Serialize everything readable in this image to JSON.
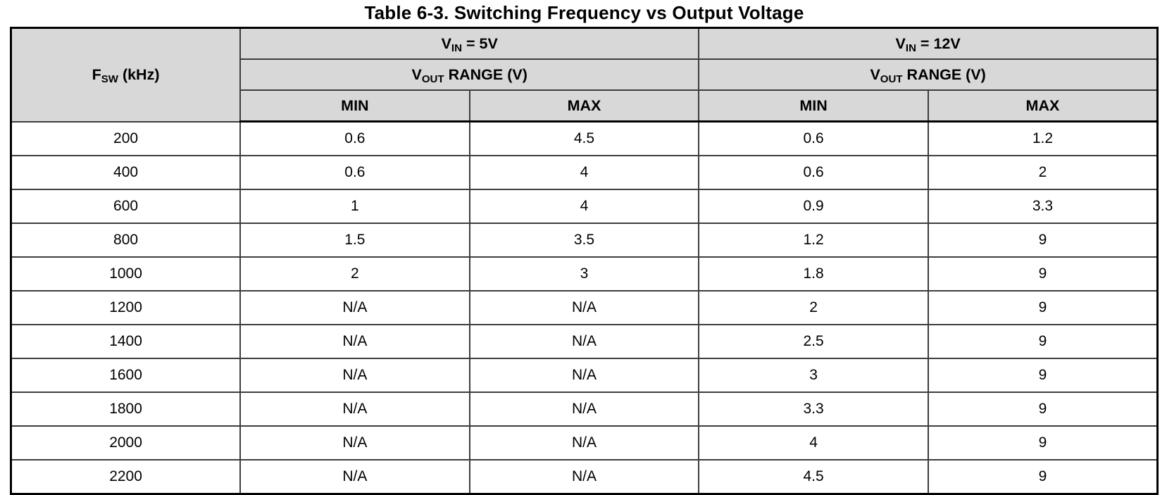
{
  "page": {
    "title": "Table 6-3. Switching Frequency vs Output Voltage"
  },
  "header": {
    "fsw": {
      "pre": "F",
      "sub": "SW",
      "post": " (kHz)"
    },
    "vin_5v": {
      "pre": "V",
      "sub": "IN",
      "post": " = 5V"
    },
    "vin_12v": {
      "pre": "V",
      "sub": "IN",
      "post": " = 12V"
    },
    "vout_range_5v": {
      "pre": "V",
      "sub": "OUT",
      "post": " RANGE (V)"
    },
    "vout_range_12v": {
      "pre": "V",
      "sub": "OUT",
      "post": " RANGE (V)"
    },
    "min_5v": "MIN",
    "max_5v": "MAX",
    "min_12v": "MIN",
    "max_12v": "MAX"
  },
  "columns": [
    "fsw",
    "min5",
    "max5",
    "min12",
    "max12"
  ],
  "rows": [
    {
      "fsw": "200",
      "min5": "0.6",
      "max5": "4.5",
      "min12": "0.6",
      "max12": "1.2"
    },
    {
      "fsw": "400",
      "min5": "0.6",
      "max5": "4",
      "min12": "0.6",
      "max12": "2"
    },
    {
      "fsw": "600",
      "min5": "1",
      "max5": "4",
      "min12": "0.9",
      "max12": "3.3"
    },
    {
      "fsw": "800",
      "min5": "1.5",
      "max5": "3.5",
      "min12": "1.2",
      "max12": "9"
    },
    {
      "fsw": "1000",
      "min5": "2",
      "max5": "3",
      "min12": "1.8",
      "max12": "9"
    },
    {
      "fsw": "1200",
      "min5": "N/A",
      "max5": "N/A",
      "min12": "2",
      "max12": "9"
    },
    {
      "fsw": "1400",
      "min5": "N/A",
      "max5": "N/A",
      "min12": "2.5",
      "max12": "9"
    },
    {
      "fsw": "1600",
      "min5": "N/A",
      "max5": "N/A",
      "min12": "3",
      "max12": "9"
    },
    {
      "fsw": "1800",
      "min5": "N/A",
      "max5": "N/A",
      "min12": "3.3",
      "max12": "9"
    },
    {
      "fsw": "2000",
      "min5": "N/A",
      "max5": "N/A",
      "min12": "4",
      "max12": "9"
    },
    {
      "fsw": "2200",
      "min5": "N/A",
      "max5": "N/A",
      "min12": "4.5",
      "max12": "9"
    }
  ],
  "colors": {
    "header_bg": "#d8d8d8",
    "border_outer": "#000000",
    "border_inner": "#3d3d3d",
    "text": "#000000"
  }
}
